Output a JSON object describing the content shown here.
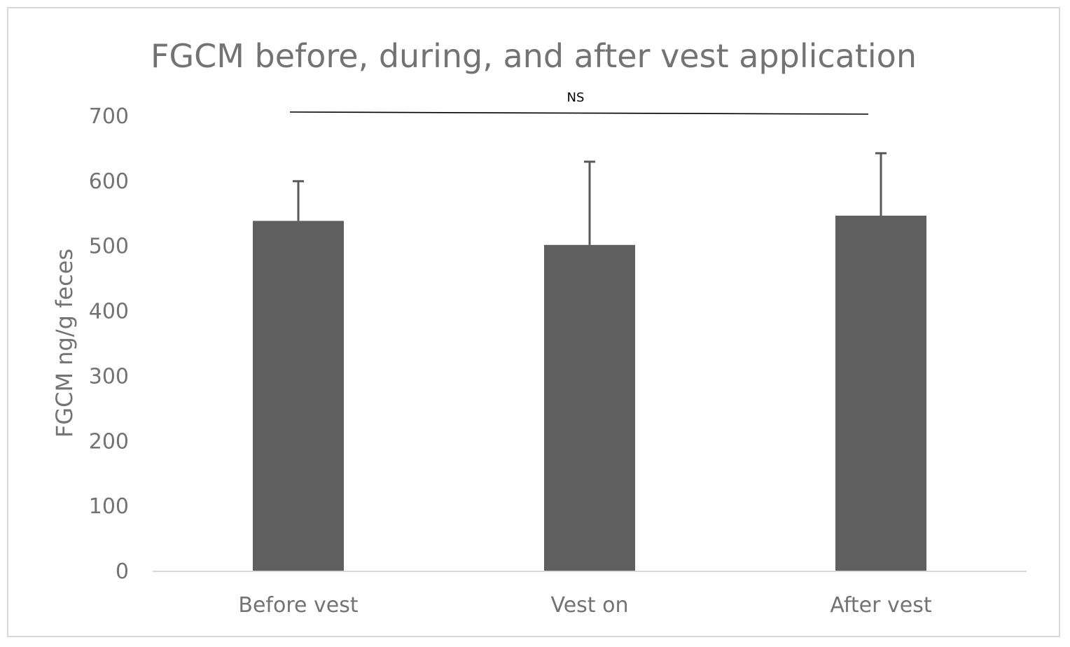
{
  "chart_data": {
    "type": "bar",
    "title": "FGCM before, during, and after vest application",
    "xlabel": "",
    "ylabel": "FGCM ng/g feces",
    "ylim": [
      0,
      700
    ],
    "yticks": [
      0,
      100,
      200,
      300,
      400,
      500,
      600,
      700
    ],
    "categories": [
      "Before vest",
      "Vest on",
      "After vest"
    ],
    "values": [
      538,
      501,
      546
    ],
    "error_upper": [
      599,
      629,
      642
    ],
    "bar_color": "#5f5f5f",
    "error_bar_color": "#595959",
    "grid": false,
    "legend": "none",
    "annotation": {
      "text": "NS",
      "from_category": "Before vest",
      "to_category": "After vest",
      "line_color": "#000000"
    }
  }
}
